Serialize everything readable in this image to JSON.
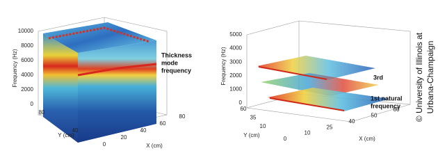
{
  "panels": [
    {
      "z_axis": {
        "label": "Frequency (Hz)",
        "ticks": [
          0,
          2000,
          4000,
          6000,
          8000,
          10000
        ]
      },
      "y_axis": {
        "label": "Y (cm)",
        "ticks": [
          80,
          40
        ]
      },
      "x_axis": {
        "label": "X (cm)",
        "ticks": [
          0,
          20,
          40,
          60,
          80
        ]
      },
      "annotations": [
        "Thickness",
        "mode",
        "frequency"
      ]
    },
    {
      "z_axis": {
        "label": "Frequency (Hz)",
        "ticks": [
          0,
          1000,
          2000,
          3000,
          4000,
          5000
        ]
      },
      "y_axis": {
        "label": "Y (cm)",
        "ticks": [
          60,
          35,
          10
        ]
      },
      "x_axis": {
        "label": "X (cm)",
        "ticks": [
          0,
          10,
          25,
          40,
          50,
          60
        ]
      },
      "annotations": [
        "3rd",
        "1st natural",
        "frequency"
      ]
    }
  ],
  "credit": [
    "© University of Illinois at",
    "Urbana-Champaign"
  ]
}
